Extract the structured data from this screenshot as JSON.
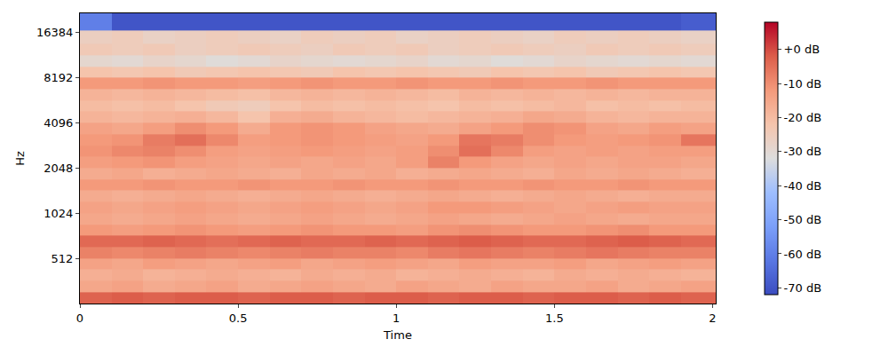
{
  "chart_data": {
    "type": "heatmap",
    "x_label": "Time",
    "y_label": "Hz",
    "log": "y",
    "xlim": [
      0,
      2.01
    ],
    "xticks": [
      0,
      0.5,
      1,
      1.5,
      2
    ],
    "ylim": [
      256,
      22050
    ],
    "yticks": [
      512,
      1024,
      2048,
      4096,
      8192,
      16384
    ],
    "x_edges": [
      0,
      0.1,
      0.2,
      0.3,
      0.4,
      0.5,
      0.6,
      0.7,
      0.8,
      0.9,
      1.0,
      1.1,
      1.2,
      1.3,
      1.4,
      1.5,
      1.6,
      1.7,
      1.8,
      1.9,
      2.01
    ],
    "y_edges": [
      256,
      304,
      362,
      431,
      512,
      609,
      724,
      861,
      1024,
      1218,
      1448,
      1722,
      2048,
      2435,
      2896,
      3444,
      4096,
      4871,
      5793,
      6889,
      8192,
      9742,
      11585,
      13777,
      17000,
      23170
    ],
    "z": [
      [
        -3,
        -2,
        -3,
        -2,
        -2,
        -3,
        -2,
        -2,
        -3,
        -2,
        -2,
        -3,
        -2,
        -2,
        -3,
        -2,
        -2,
        -3,
        -2,
        -3
      ],
      [
        -15,
        -14,
        -16,
        -15,
        -14,
        -16,
        -15,
        -14,
        -15,
        -16,
        -14,
        -15,
        -16,
        -14,
        -15,
        -15,
        -14,
        -16,
        -15,
        -14
      ],
      [
        -17,
        -16,
        -18,
        -17,
        -16,
        -17,
        -18,
        -16,
        -17,
        -16,
        -18,
        -17,
        -16,
        -17,
        -18,
        -16,
        -17,
        -16,
        -17,
        -18
      ],
      [
        -14,
        -15,
        -13,
        -14,
        -15,
        -14,
        -13,
        -15,
        -14,
        -13,
        -14,
        -15,
        -13,
        -14,
        -14,
        -13,
        -15,
        -14,
        -13,
        -14
      ],
      [
        -8,
        -9,
        -8,
        -7,
        -8,
        -9,
        -8,
        -7,
        -8,
        -8,
        -9,
        -7,
        -6,
        -7,
        -8,
        -7,
        -6,
        -7,
        -8,
        -8
      ],
      [
        -4,
        -4,
        -3,
        -4,
        -5,
        -4,
        -3,
        -4,
        -4,
        -3,
        -4,
        -3,
        -2,
        -3,
        -4,
        -4,
        -3,
        -2,
        -3,
        -4
      ],
      [
        -12,
        -13,
        -12,
        -11,
        -12,
        -13,
        -12,
        -11,
        -12,
        -12,
        -13,
        -11,
        -10,
        -11,
        -12,
        -12,
        -11,
        -10,
        -12,
        -12
      ],
      [
        -15,
        -16,
        -15,
        -14,
        -15,
        -16,
        -15,
        -14,
        -15,
        -16,
        -15,
        -14,
        -15,
        -16,
        -15,
        -14,
        -15,
        -16,
        -15,
        -15
      ],
      [
        -14,
        -15,
        -14,
        -13,
        -14,
        -15,
        -14,
        -13,
        -14,
        -15,
        -14,
        -12,
        -12,
        -13,
        -14,
        -15,
        -14,
        -13,
        -14,
        -14
      ],
      [
        -16,
        -17,
        -16,
        -15,
        -16,
        -17,
        -16,
        -15,
        -16,
        -17,
        -16,
        -15,
        -16,
        -17,
        -16,
        -15,
        -16,
        -17,
        -16,
        -16
      ],
      [
        -12,
        -12,
        -11,
        -12,
        -12,
        -11,
        -12,
        -12,
        -11,
        -12,
        -12,
        -11,
        -12,
        -12,
        -11,
        -12,
        -12,
        -11,
        -12,
        -12
      ],
      [
        -16,
        -15,
        -17,
        -16,
        -15,
        -16,
        -17,
        -15,
        -16,
        -15,
        -17,
        -16,
        -15,
        -16,
        -17,
        -15,
        -16,
        -15,
        -16,
        -17
      ],
      [
        -13,
        -12,
        -11,
        -13,
        -14,
        -15,
        -14,
        -15,
        -14,
        -15,
        -13,
        -8,
        -12,
        -14,
        -15,
        -14,
        -15,
        -14,
        -14,
        -15
      ],
      [
        -11,
        -9,
        -8,
        -10,
        -13,
        -14,
        -13,
        -12,
        -13,
        -14,
        -13,
        -10,
        -5,
        -9,
        -13,
        -14,
        -13,
        -14,
        -13,
        -13
      ],
      [
        -12,
        -11,
        -7,
        -5,
        -9,
        -13,
        -12,
        -11,
        -12,
        -13,
        -14,
        -12,
        -6,
        -7,
        -10,
        -12,
        -13,
        -12,
        -11,
        -6
      ],
      [
        -14,
        -15,
        -13,
        -10,
        -12,
        -16,
        -12,
        -11,
        -12,
        -14,
        -15,
        -16,
        -14,
        -12,
        -10,
        -11,
        -14,
        -15,
        -13,
        -14
      ],
      [
        -18,
        -19,
        -18,
        -17,
        -19,
        -22,
        -17,
        -16,
        -18,
        -19,
        -20,
        -19,
        -18,
        -17,
        -15,
        -16,
        -18,
        -19,
        -18,
        -18
      ],
      [
        -20,
        -21,
        -20,
        -22,
        -24,
        -25,
        -22,
        -20,
        -21,
        -20,
        -21,
        -22,
        -20,
        -21,
        -20,
        -19,
        -21,
        -20,
        -21,
        -20
      ],
      [
        -18,
        -19,
        -18,
        -19,
        -20,
        -21,
        -19,
        -18,
        -19,
        -18,
        -19,
        -20,
        -18,
        -19,
        -18,
        -19,
        -18,
        -19,
        -18,
        -18
      ],
      [
        -12,
        -12,
        -11,
        -12,
        -12,
        -13,
        -12,
        -11,
        -12,
        -12,
        -11,
        -12,
        -12,
        -11,
        -12,
        -12,
        -11,
        -12,
        -12,
        -12
      ],
      [
        -22,
        -23,
        -22,
        -24,
        -23,
        -22,
        -23,
        -24,
        -22,
        -23,
        -22,
        -23,
        -24,
        -22,
        -23,
        -22,
        -24,
        -23,
        -22,
        -23
      ],
      [
        -29,
        -30,
        -28,
        -29,
        -31,
        -30,
        -28,
        -29,
        -30,
        -29,
        -28,
        -30,
        -29,
        -31,
        -30,
        -28,
        -29,
        -30,
        -29,
        -30
      ],
      [
        -24,
        -25,
        -24,
        -26,
        -25,
        -24,
        -25,
        -26,
        -24,
        -25,
        -24,
        -26,
        -25,
        -24,
        -25,
        -26,
        -24,
        -25,
        -24,
        -25
      ],
      [
        -26,
        -25,
        -27,
        -26,
        -25,
        -26,
        -27,
        -25,
        -26,
        -25,
        -27,
        -26,
        -25,
        -26,
        -27,
        -25,
        -26,
        -25,
        -26,
        -27
      ],
      [
        -60,
        -70,
        -70,
        -70,
        -70,
        -70,
        -70,
        -70,
        -70,
        -70,
        -70,
        -70,
        -70,
        -70,
        -70,
        -70,
        -70,
        -70,
        -70,
        -68
      ]
    ],
    "colorbar_range": [
      -72,
      8
    ],
    "colorbar_ticks": [
      {
        "value": 0,
        "label": "+0 dB"
      },
      {
        "value": -10,
        "label": "-10 dB"
      },
      {
        "value": -20,
        "label": "-20 dB"
      },
      {
        "value": -30,
        "label": "-30 dB"
      },
      {
        "value": -40,
        "label": "-40 dB"
      },
      {
        "value": -50,
        "label": "-50 dB"
      },
      {
        "value": -60,
        "label": "-60 dB"
      },
      {
        "value": -70,
        "label": "-70 dB"
      }
    ]
  }
}
